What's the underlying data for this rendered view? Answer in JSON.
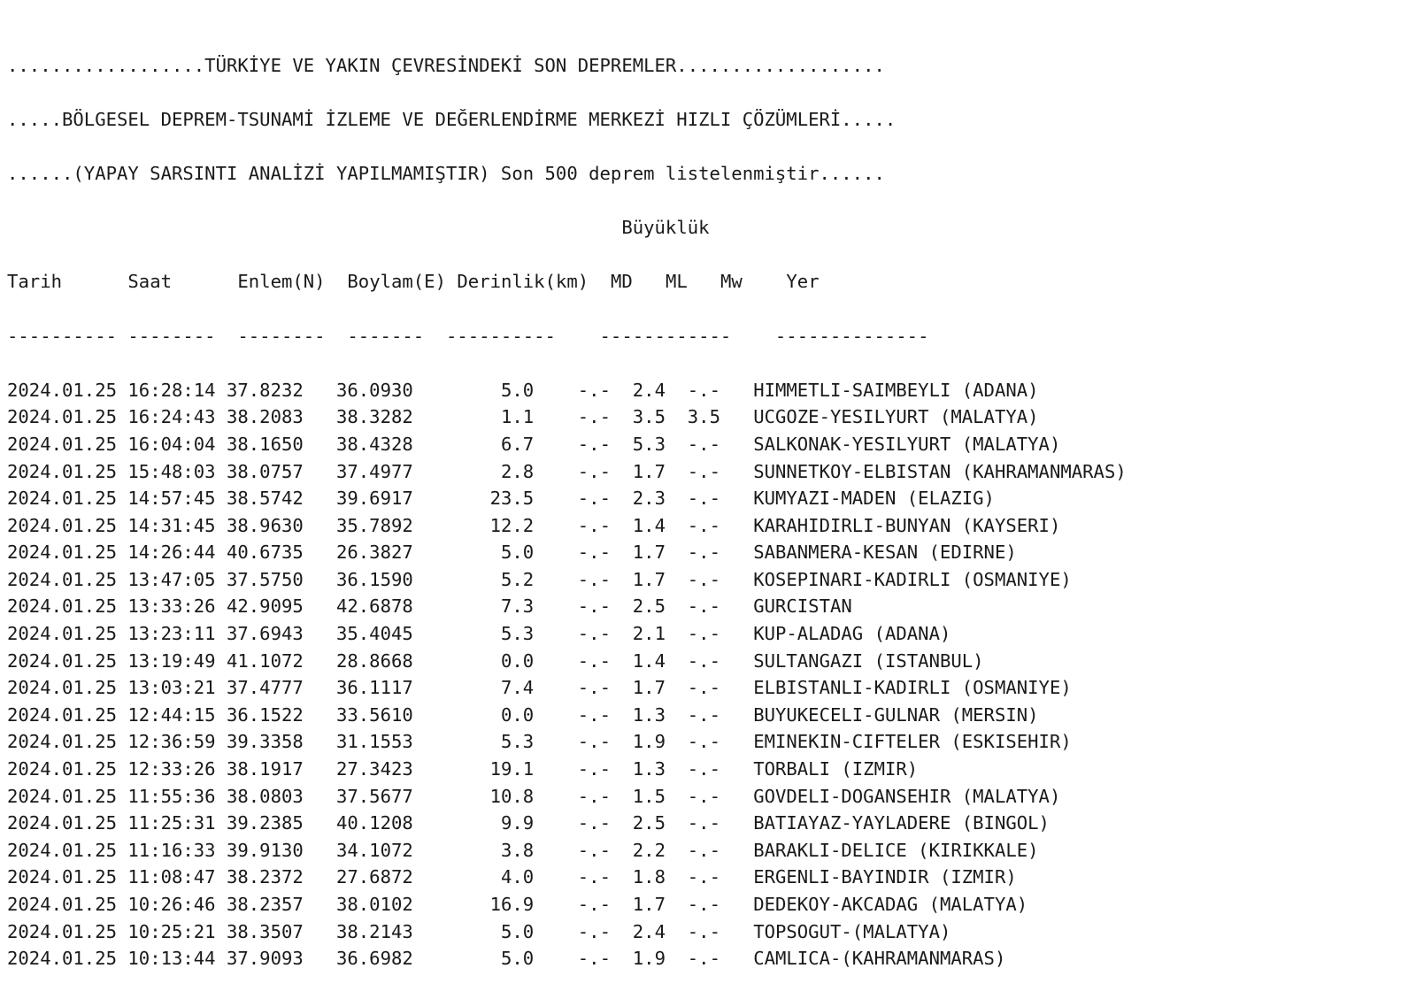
{
  "header": {
    "line1": "..................TÜRKİYE VE YAKIN ÇEVRESİNDEKİ SON DEPREMLER...................",
    "line2": ".....BÖLGESEL DEPREM-TSUNAMİ İZLEME VE DEĞERLENDİRME MERKEZİ HIZLI ÇÖZÜMLERİ.....",
    "line3": "......(YAPAY SARSINTI ANALİZİ YAPILMAMIŞTIR) Son 500 deprem listelenmiştir......",
    "magnitude_group": "Büyüklük"
  },
  "columns": {
    "tarih": "Tarih",
    "saat": "Saat",
    "enlem": "Enlem(N)",
    "boylam": "Boylam(E)",
    "derinlik": "Derinlik(km)",
    "md": "MD",
    "ml": "ML",
    "mw": "Mw",
    "yer": "Yer"
  },
  "separator": "---------- --------  --------  -------  ----------    ------------    --------------",
  "rows": [
    [
      "2024.01.25",
      "16:28:14",
      "37.8232",
      "36.0930",
      "5.0",
      "-.-",
      "2.4",
      "-.-",
      "HIMMETLI-SAIMBEYLI (ADANA)"
    ],
    [
      "2024.01.25",
      "16:24:43",
      "38.2083",
      "38.3282",
      "1.1",
      "-.-",
      "3.5",
      "3.5",
      "UCGOZE-YESILYURT (MALATYA)"
    ],
    [
      "2024.01.25",
      "16:04:04",
      "38.1650",
      "38.4328",
      "6.7",
      "-.-",
      "5.3",
      "-.-",
      "SALKONAK-YESILYURT (MALATYA)"
    ],
    [
      "2024.01.25",
      "15:48:03",
      "38.0757",
      "37.4977",
      "2.8",
      "-.-",
      "1.7",
      "-.-",
      "SUNNETKOY-ELBISTAN (KAHRAMANMARAS)"
    ],
    [
      "2024.01.25",
      "14:57:45",
      "38.5742",
      "39.6917",
      "23.5",
      "-.-",
      "2.3",
      "-.-",
      "KUMYAZI-MADEN (ELAZIG)"
    ],
    [
      "2024.01.25",
      "14:31:45",
      "38.9630",
      "35.7892",
      "12.2",
      "-.-",
      "1.4",
      "-.-",
      "KARAHIDIRLI-BUNYAN (KAYSERI)"
    ],
    [
      "2024.01.25",
      "14:26:44",
      "40.6735",
      "26.3827",
      "5.0",
      "-.-",
      "1.7",
      "-.-",
      "SABANMERA-KESAN (EDIRNE)"
    ],
    [
      "2024.01.25",
      "13:47:05",
      "37.5750",
      "36.1590",
      "5.2",
      "-.-",
      "1.7",
      "-.-",
      "KOSEPINARI-KADIRLI (OSMANIYE)"
    ],
    [
      "2024.01.25",
      "13:33:26",
      "42.9095",
      "42.6878",
      "7.3",
      "-.-",
      "2.5",
      "-.-",
      "GURCISTAN"
    ],
    [
      "2024.01.25",
      "13:23:11",
      "37.6943",
      "35.4045",
      "5.3",
      "-.-",
      "2.1",
      "-.-",
      "KUP-ALADAG (ADANA)"
    ],
    [
      "2024.01.25",
      "13:19:49",
      "41.1072",
      "28.8668",
      "0.0",
      "-.-",
      "1.4",
      "-.-",
      "SULTANGAZI (ISTANBUL)"
    ],
    [
      "2024.01.25",
      "13:03:21",
      "37.4777",
      "36.1117",
      "7.4",
      "-.-",
      "1.7",
      "-.-",
      "ELBISTANLI-KADIRLI (OSMANIYE)"
    ],
    [
      "2024.01.25",
      "12:44:15",
      "36.1522",
      "33.5610",
      "0.0",
      "-.-",
      "1.3",
      "-.-",
      "BUYUKECELI-GULNAR (MERSIN)"
    ],
    [
      "2024.01.25",
      "12:36:59",
      "39.3358",
      "31.1553",
      "5.3",
      "-.-",
      "1.9",
      "-.-",
      "EMINEKIN-CIFTELER (ESKISEHIR)"
    ],
    [
      "2024.01.25",
      "12:33:26",
      "38.1917",
      "27.3423",
      "19.1",
      "-.-",
      "1.3",
      "-.-",
      "TORBALI (IZMIR)"
    ],
    [
      "2024.01.25",
      "11:55:36",
      "38.0803",
      "37.5677",
      "10.8",
      "-.-",
      "1.5",
      "-.-",
      "GOVDELI-DOGANSEHIR (MALATYA)"
    ],
    [
      "2024.01.25",
      "11:25:31",
      "39.2385",
      "40.1208",
      "9.9",
      "-.-",
      "2.5",
      "-.-",
      "BATIAYAZ-YAYLADERE (BINGOL)"
    ],
    [
      "2024.01.25",
      "11:16:33",
      "39.9130",
      "34.1072",
      "3.8",
      "-.-",
      "2.2",
      "-.-",
      "BARAKLI-DELICE (KIRIKKALE)"
    ],
    [
      "2024.01.25",
      "11:08:47",
      "38.2372",
      "27.6872",
      "4.0",
      "-.-",
      "1.8",
      "-.-",
      "ERGENLI-BAYINDIR (IZMIR)"
    ],
    [
      "2024.01.25",
      "10:26:46",
      "38.2357",
      "38.0102",
      "16.9",
      "-.-",
      "1.7",
      "-.-",
      "DEDEKOY-AKCADAG (MALATYA)"
    ],
    [
      "2024.01.25",
      "10:25:21",
      "38.3507",
      "38.2143",
      "5.0",
      "-.-",
      "2.4",
      "-.-",
      "TOPSOGUT-(MALATYA)"
    ],
    [
      "2024.01.25",
      "10:13:44",
      "37.9093",
      "36.6982",
      "5.0",
      "-.-",
      "1.9",
      "-.-",
      "CAMLICA-(KAHRAMANMARAS)"
    ]
  ]
}
